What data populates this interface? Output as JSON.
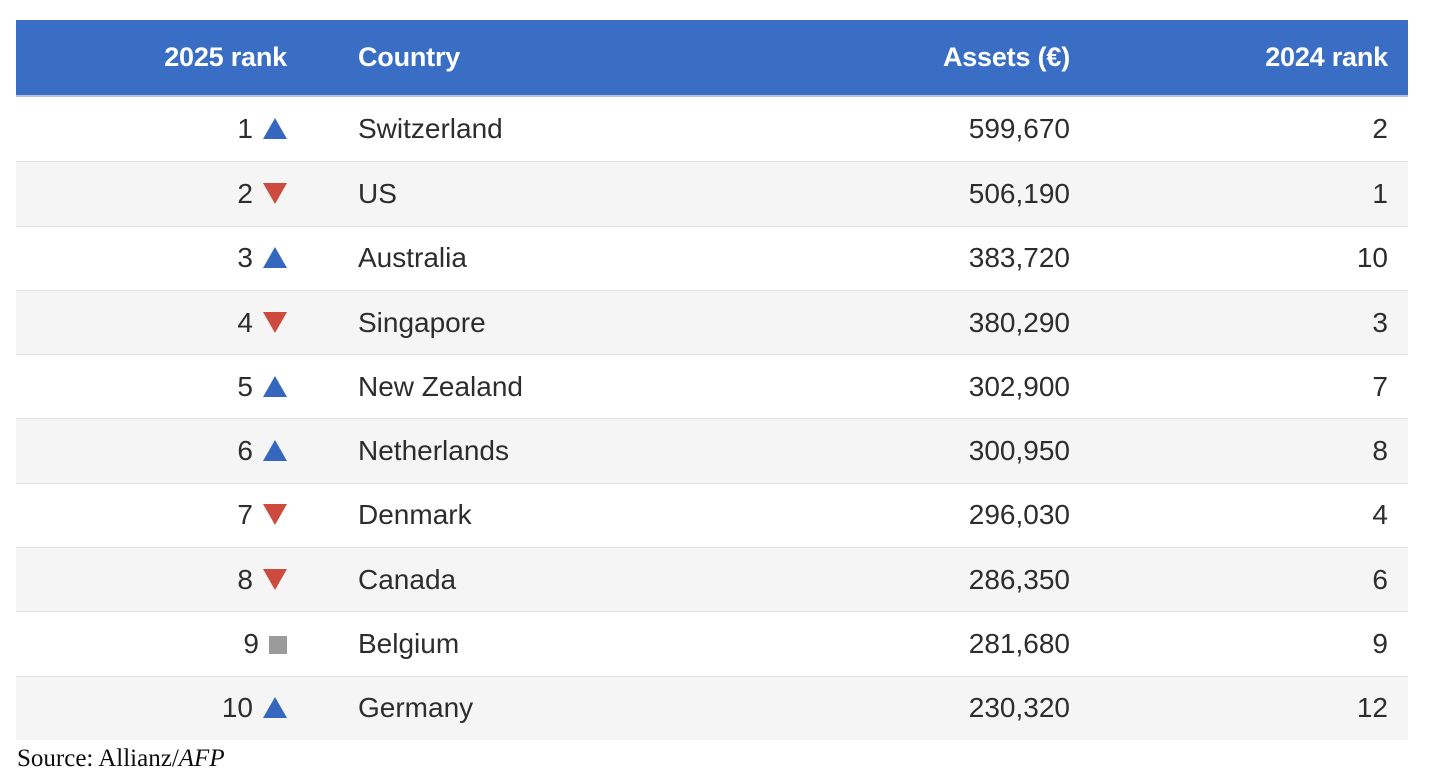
{
  "table": {
    "columns": [
      {
        "label": "2025 rank",
        "align": "right"
      },
      {
        "label": "Country",
        "align": "left"
      },
      {
        "label": "Assets (€)",
        "align": "right"
      },
      {
        "label": "2024 rank",
        "align": "right"
      }
    ],
    "rows": [
      {
        "rank_2025": "1",
        "change": "up",
        "country": "Switzerland",
        "assets": "599,670",
        "rank_2024": "2"
      },
      {
        "rank_2025": "2",
        "change": "down",
        "country": "US",
        "assets": "506,190",
        "rank_2024": "1"
      },
      {
        "rank_2025": "3",
        "change": "up",
        "country": "Australia",
        "assets": "383,720",
        "rank_2024": "10"
      },
      {
        "rank_2025": "4",
        "change": "down",
        "country": "Singapore",
        "assets": "380,290",
        "rank_2024": "3"
      },
      {
        "rank_2025": "5",
        "change": "up",
        "country": "New Zealand",
        "assets": "302,900",
        "rank_2024": "7"
      },
      {
        "rank_2025": "6",
        "change": "up",
        "country": "Netherlands",
        "assets": "300,950",
        "rank_2024": "8"
      },
      {
        "rank_2025": "7",
        "change": "down",
        "country": "Denmark",
        "assets": "296,030",
        "rank_2024": "4"
      },
      {
        "rank_2025": "8",
        "change": "down",
        "country": "Canada",
        "assets": "286,350",
        "rank_2024": "6"
      },
      {
        "rank_2025": "9",
        "change": "same",
        "country": "Belgium",
        "assets": "281,680",
        "rank_2024": "9"
      },
      {
        "rank_2025": "10",
        "change": "up",
        "country": "Germany",
        "assets": "230,320",
        "rank_2024": "12"
      }
    ]
  },
  "footer": {
    "source_prefix": "Source: Allianz/",
    "source_agency": "AFP"
  },
  "colors": {
    "header_bg": "#3A6EC5",
    "header_text": "#FFFFFF",
    "row_alt_bg": "#F5F5F5",
    "row_divider": "#E2E2E2",
    "text": "#2D2D2D",
    "up": "#3567BE",
    "down": "#CC4A3E",
    "same": "#9B9B9B"
  },
  "chart_data": {
    "type": "table",
    "title": "",
    "columns": [
      "2025 rank",
      "Country",
      "Assets (€)",
      "2024 rank"
    ],
    "rows": [
      [
        1,
        "Switzerland",
        599670,
        2
      ],
      [
        2,
        "US",
        506190,
        1
      ],
      [
        3,
        "Australia",
        383720,
        10
      ],
      [
        4,
        "Singapore",
        380290,
        3
      ],
      [
        5,
        "New Zealand",
        302900,
        7
      ],
      [
        6,
        "Netherlands",
        300950,
        8
      ],
      [
        7,
        "Denmark",
        296030,
        4
      ],
      [
        8,
        "Canada",
        286350,
        6
      ],
      [
        9,
        "Belgium",
        281680,
        9
      ],
      [
        10,
        "Germany",
        230320,
        12
      ]
    ],
    "rank_change": [
      "up",
      "down",
      "up",
      "down",
      "up",
      "up",
      "down",
      "down",
      "same",
      "up"
    ],
    "source": "Source: Allianz/AFP"
  }
}
